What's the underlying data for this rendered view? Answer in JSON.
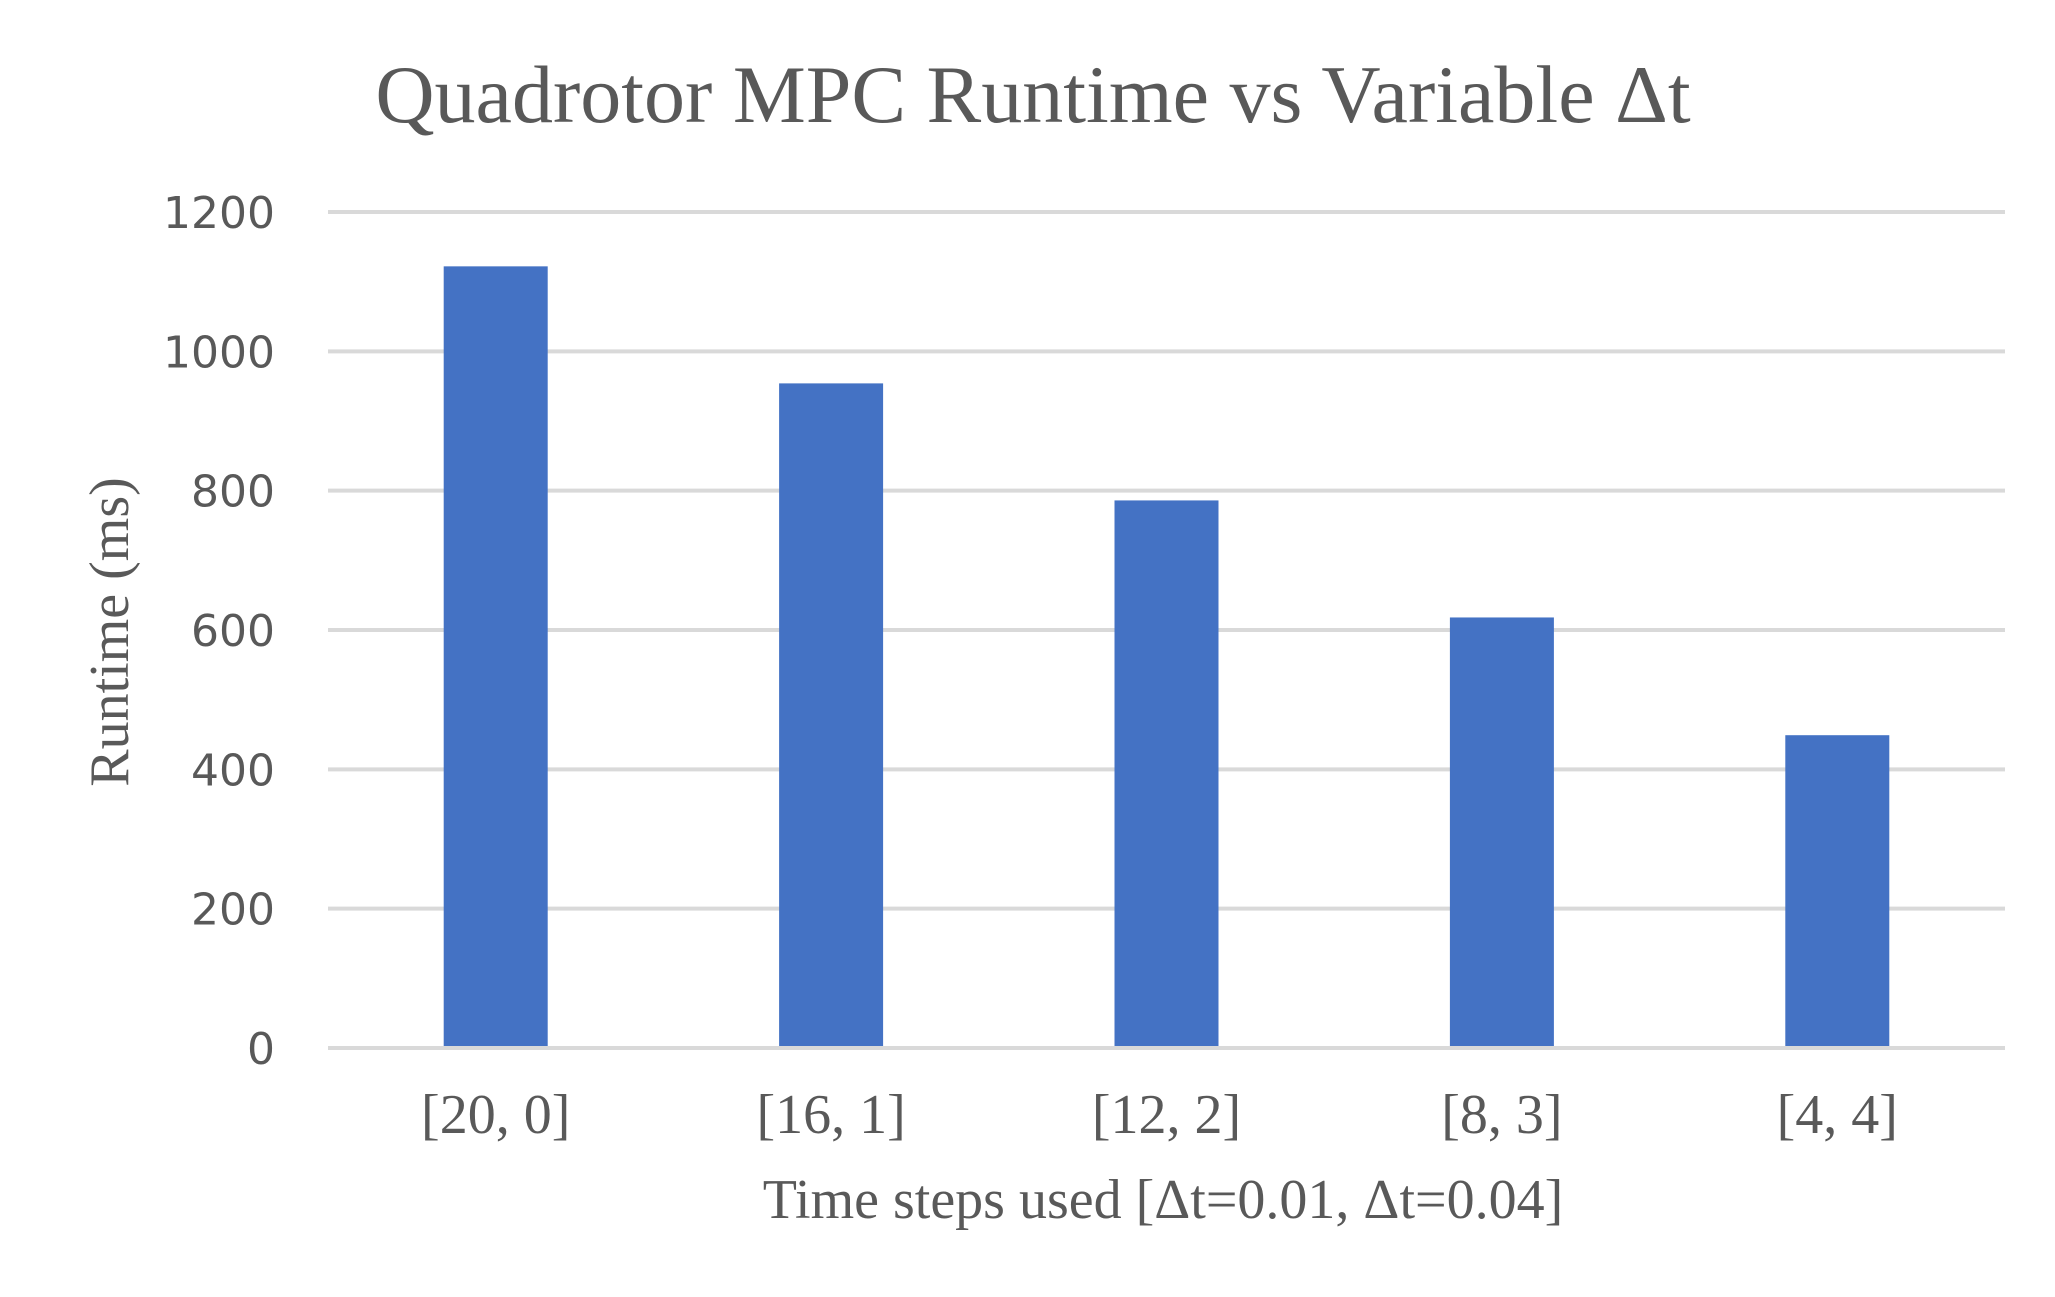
{
  "chart_data": {
    "type": "bar",
    "title": "Quadrotor MPC Runtime vs Variable Δt",
    "xlabel": "Time steps used [Δt=0.01, Δt=0.04]",
    "ylabel": "Runtime (ms)",
    "categories": [
      "[20, 0]",
      "[16, 1]",
      "[12, 2]",
      "[8, 3]",
      "[4, 4]"
    ],
    "values": [
      1122,
      954,
      786,
      618,
      449
    ],
    "ylim": [
      0,
      1200
    ],
    "yticks": [
      0,
      200,
      400,
      600,
      800,
      1000,
      1200
    ],
    "ytick_labels": [
      "0",
      "200",
      "400",
      "600",
      "800",
      "1000",
      "1200"
    ],
    "grid": true,
    "legend": "none",
    "bar_color": "#4472C4",
    "grid_color": "#d9d9d9",
    "text_color": "#595959"
  }
}
